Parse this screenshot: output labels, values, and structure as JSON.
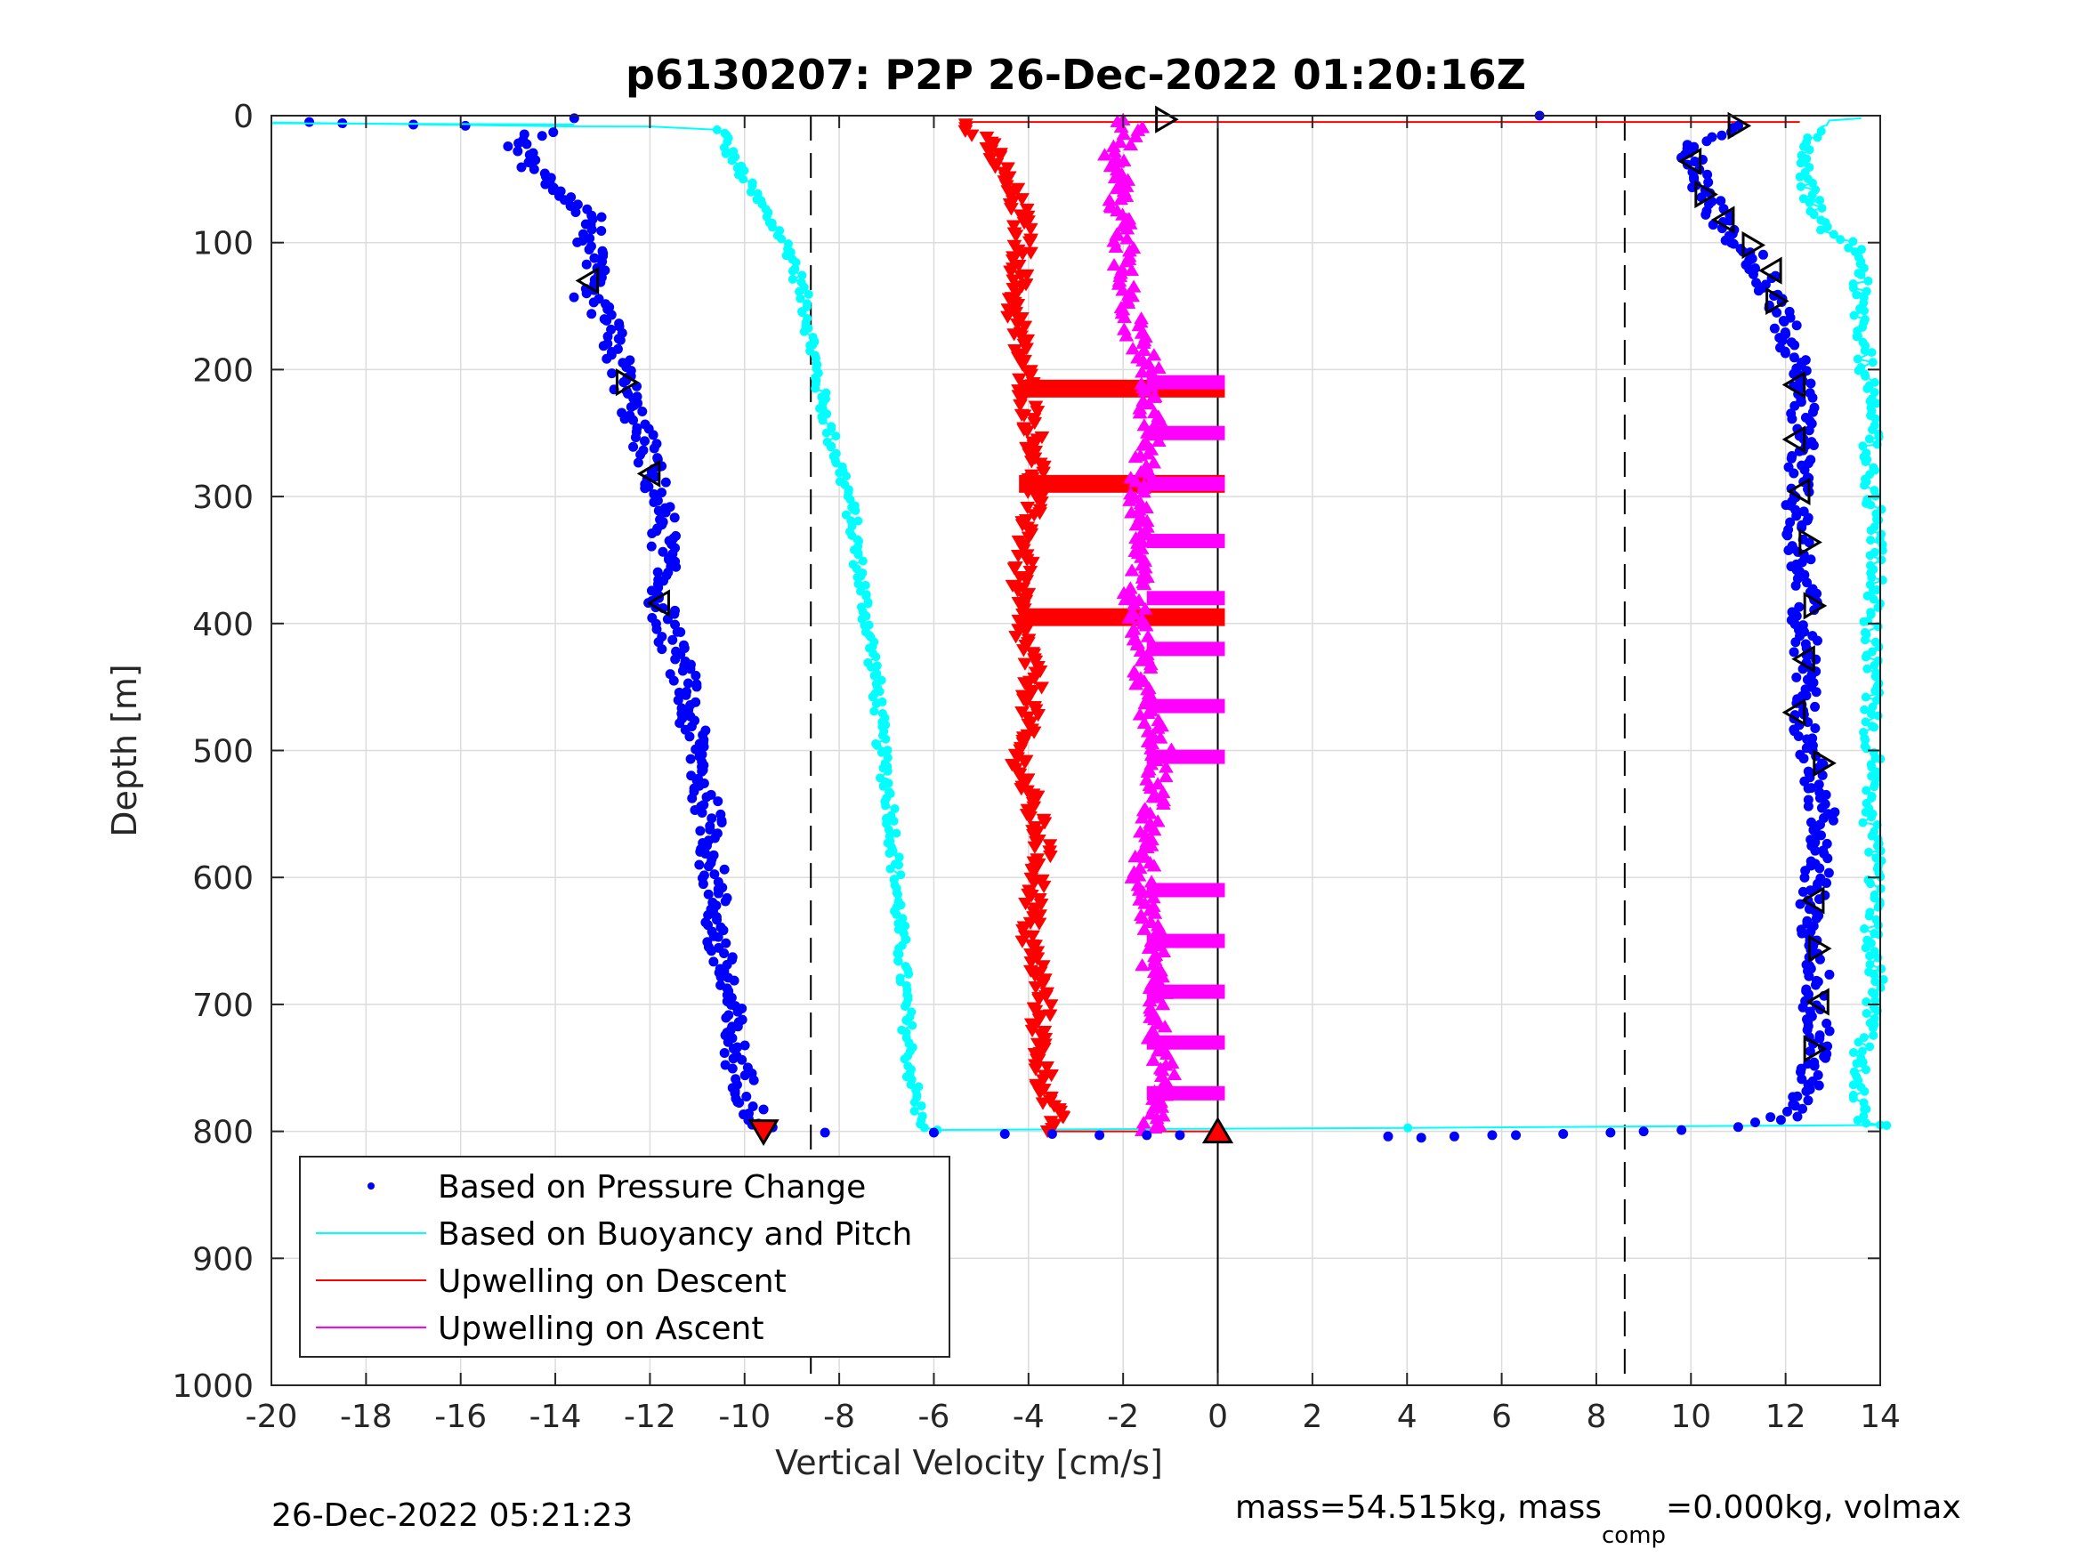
{
  "chart_data": {
    "type": "scatter",
    "title": "p6130207: P2P 26-Dec-2022 01:20:16Z",
    "xlabel": "Vertical Velocity [cm/s]",
    "ylabel": "Depth [m]",
    "xlim": [
      -20,
      14
    ],
    "ylim": [
      0,
      1000
    ],
    "y_reversed": true,
    "grid": true,
    "x_ticks": [
      "-20",
      "-18",
      "-16",
      "-14",
      "-12",
      "-10",
      "-8",
      "-6",
      "-4",
      "-2",
      "0",
      "2",
      "4",
      "6",
      "8",
      "10",
      "12",
      "14"
    ],
    "y_ticks": [
      "0",
      "100",
      "200",
      "300",
      "400",
      "500",
      "600",
      "700",
      "800",
      "900",
      "1000"
    ],
    "reference_lines": [
      {
        "type": "vertical-dashed",
        "x": -8.6
      },
      {
        "type": "vertical-dashed",
        "x": 8.6
      },
      {
        "type": "vertical-solid",
        "x": 0
      }
    ],
    "legend_position": "bottom-left",
    "series": [
      {
        "name": "Based on Pressure Change",
        "color": "#0000ff",
        "marker": "dot",
        "descent": [
          [
            -19.2,
            5
          ],
          [
            -18.5,
            6
          ],
          [
            -17.0,
            7
          ],
          [
            -15.9,
            8
          ],
          [
            -13.6,
            2
          ],
          [
            -14.3,
            12
          ],
          [
            -14.8,
            25
          ],
          [
            -14.4,
            45
          ],
          [
            -13.8,
            60
          ],
          [
            -13.2,
            80
          ],
          [
            -13.3,
            100
          ],
          [
            -13.2,
            120
          ],
          [
            -13.4,
            140
          ],
          [
            -12.9,
            160
          ],
          [
            -12.8,
            180
          ],
          [
            -12.6,
            200
          ],
          [
            -12.4,
            230
          ],
          [
            -12.1,
            260
          ],
          [
            -11.9,
            290
          ],
          [
            -11.7,
            320
          ],
          [
            -11.7,
            350
          ],
          [
            -11.8,
            380
          ],
          [
            -11.6,
            410
          ],
          [
            -11.3,
            440
          ],
          [
            -11.2,
            470
          ],
          [
            -11.0,
            500
          ],
          [
            -10.9,
            530
          ],
          [
            -10.7,
            560
          ],
          [
            -10.7,
            590
          ],
          [
            -10.6,
            620
          ],
          [
            -10.6,
            650
          ],
          [
            -10.4,
            680
          ],
          [
            -10.3,
            710
          ],
          [
            -10.2,
            740
          ],
          [
            -10.0,
            765
          ],
          [
            -9.8,
            785
          ],
          [
            -9.6,
            800
          ],
          [
            -8.3,
            801
          ],
          [
            -6.0,
            801
          ],
          [
            -4.5,
            802
          ],
          [
            -3.5,
            802
          ],
          [
            -2.5,
            803
          ],
          [
            -1.5,
            803
          ],
          [
            -0.8,
            803
          ]
        ],
        "ascent": [
          [
            3.6,
            804
          ],
          [
            4.3,
            805
          ],
          [
            5.0,
            804
          ],
          [
            5.8,
            803
          ],
          [
            6.3,
            803
          ],
          [
            7.3,
            802
          ],
          [
            8.3,
            801
          ],
          [
            9.0,
            800
          ],
          [
            9.8,
            799
          ],
          [
            10.8,
            797
          ],
          [
            11.6,
            794
          ],
          [
            12.2,
            785
          ],
          [
            12.5,
            760
          ],
          [
            12.7,
            730
          ],
          [
            12.6,
            700
          ],
          [
            12.7,
            670
          ],
          [
            12.5,
            640
          ],
          [
            12.6,
            610
          ],
          [
            12.7,
            580
          ],
          [
            12.8,
            550
          ],
          [
            12.6,
            520
          ],
          [
            12.4,
            490
          ],
          [
            12.4,
            460
          ],
          [
            12.4,
            430
          ],
          [
            12.4,
            400
          ],
          [
            12.4,
            370
          ],
          [
            12.3,
            340
          ],
          [
            12.2,
            310
          ],
          [
            12.3,
            280
          ],
          [
            12.4,
            250
          ],
          [
            12.3,
            220
          ],
          [
            12.2,
            190
          ],
          [
            12.0,
            165
          ],
          [
            11.7,
            140
          ],
          [
            11.4,
            115
          ],
          [
            10.9,
            95
          ],
          [
            10.5,
            75
          ],
          [
            10.2,
            55
          ],
          [
            10.0,
            35
          ],
          [
            10.2,
            20
          ],
          [
            11.0,
            8
          ],
          [
            6.8,
            0
          ]
        ]
      },
      {
        "name": "Based on Buoyancy and Pitch",
        "color": "#00ffff",
        "marker": "line",
        "descent": [
          [
            -20.0,
            6
          ],
          [
            -13.6,
            7
          ],
          [
            -12.0,
            8
          ],
          [
            -10.5,
            10
          ],
          [
            -10.3,
            30
          ],
          [
            -10.0,
            50
          ],
          [
            -9.5,
            80
          ],
          [
            -9.0,
            110
          ],
          [
            -8.7,
            150
          ],
          [
            -8.5,
            200
          ],
          [
            -8.2,
            250
          ],
          [
            -7.8,
            300
          ],
          [
            -7.6,
            350
          ],
          [
            -7.4,
            400
          ],
          [
            -7.2,
            450
          ],
          [
            -7.1,
            500
          ],
          [
            -6.9,
            550
          ],
          [
            -6.8,
            600
          ],
          [
            -6.7,
            650
          ],
          [
            -6.6,
            700
          ],
          [
            -6.5,
            750
          ],
          [
            -6.3,
            790
          ],
          [
            -6.0,
            800
          ],
          [
            14.0,
            795
          ]
        ],
        "ascent": [
          [
            14.0,
            795
          ],
          [
            13.6,
            790
          ],
          [
            13.5,
            760
          ],
          [
            13.7,
            720
          ],
          [
            13.9,
            680
          ],
          [
            13.8,
            640
          ],
          [
            13.9,
            600
          ],
          [
            13.8,
            560
          ],
          [
            13.9,
            520
          ],
          [
            13.8,
            480
          ],
          [
            13.9,
            440
          ],
          [
            13.8,
            400
          ],
          [
            13.9,
            360
          ],
          [
            13.9,
            320
          ],
          [
            13.8,
            280
          ],
          [
            13.8,
            240
          ],
          [
            13.7,
            200
          ],
          [
            13.6,
            160
          ],
          [
            13.6,
            120
          ],
          [
            13.4,
            100
          ],
          [
            12.8,
            90
          ],
          [
            12.6,
            70
          ],
          [
            12.4,
            50
          ],
          [
            12.5,
            30
          ],
          [
            12.7,
            10
          ],
          [
            13.0,
            3
          ],
          [
            13.6,
            2
          ]
        ]
      },
      {
        "name": "Upwelling on Descent",
        "color": "#ff0000",
        "marker": "down-triangle",
        "values": [
          [
            -5.4,
            8
          ],
          [
            -4.8,
            25
          ],
          [
            -4.5,
            50
          ],
          [
            -4.2,
            75
          ],
          [
            -4.1,
            100
          ],
          [
            -4.2,
            125
          ],
          [
            -4.3,
            150
          ],
          [
            -4.2,
            175
          ],
          [
            -4.1,
            200
          ],
          [
            -4.0,
            225
          ],
          [
            -3.9,
            250
          ],
          [
            -3.8,
            275
          ],
          [
            -3.9,
            300
          ],
          [
            -4.0,
            325
          ],
          [
            -4.1,
            350
          ],
          [
            -4.2,
            375
          ],
          [
            -4.2,
            400
          ],
          [
            -4.0,
            425
          ],
          [
            -3.9,
            450
          ],
          [
            -4.0,
            475
          ],
          [
            -4.2,
            500
          ],
          [
            -4.1,
            525
          ],
          [
            -3.9,
            550
          ],
          [
            -3.7,
            575
          ],
          [
            -3.8,
            600
          ],
          [
            -3.9,
            625
          ],
          [
            -4.0,
            650
          ],
          [
            -3.8,
            675
          ],
          [
            -3.7,
            700
          ],
          [
            -3.8,
            725
          ],
          [
            -3.7,
            750
          ],
          [
            -3.6,
            775
          ],
          [
            -3.4,
            795
          ],
          [
            -3.6,
            800
          ]
        ],
        "bands": [
          [
            215
          ],
          [
            290
          ],
          [
            395
          ]
        ],
        "top_line_y": 5
      },
      {
        "name": "Upwelling on Ascent",
        "color": "#ff00ff",
        "marker": "up-triangle",
        "values": [
          [
            -1.5,
            800
          ],
          [
            -1.2,
            775
          ],
          [
            -1.1,
            750
          ],
          [
            -1.3,
            725
          ],
          [
            -1.2,
            700
          ],
          [
            -1.4,
            675
          ],
          [
            -1.3,
            650
          ],
          [
            -1.5,
            625
          ],
          [
            -1.6,
            600
          ],
          [
            -1.5,
            575
          ],
          [
            -1.4,
            550
          ],
          [
            -1.3,
            525
          ],
          [
            -1.2,
            500
          ],
          [
            -1.4,
            475
          ],
          [
            -1.6,
            450
          ],
          [
            -1.5,
            425
          ],
          [
            -1.7,
            400
          ],
          [
            -1.8,
            375
          ],
          [
            -1.6,
            350
          ],
          [
            -1.5,
            325
          ],
          [
            -1.7,
            300
          ],
          [
            -1.6,
            275
          ],
          [
            -1.3,
            250
          ],
          [
            -1.5,
            225
          ],
          [
            -1.4,
            200
          ],
          [
            -1.7,
            175
          ],
          [
            -1.9,
            150
          ],
          [
            -2.0,
            125
          ],
          [
            -2.0,
            100
          ],
          [
            -2.1,
            75
          ],
          [
            -2.1,
            50
          ],
          [
            -2.2,
            30
          ],
          [
            -1.8,
            10
          ],
          [
            -2.0,
            3
          ]
        ],
        "bands": [
          [
            210
          ],
          [
            250
          ],
          [
            290
          ],
          [
            335
          ],
          [
            380
          ],
          [
            420
          ],
          [
            465
          ],
          [
            505
          ],
          [
            610
          ],
          [
            650
          ],
          [
            690
          ],
          [
            730
          ],
          [
            770
          ]
        ]
      }
    ],
    "markers": {
      "pitch_triangles": [
        [
          -1.1,
          3,
          "right"
        ],
        [
          -13.3,
          130,
          "left"
        ],
        [
          -12.5,
          210,
          "right"
        ],
        [
          -12.0,
          282,
          "left"
        ],
        [
          -11.8,
          384,
          "left"
        ],
        [
          11.0,
          8,
          "right"
        ],
        [
          10.0,
          36,
          "left"
        ],
        [
          10.3,
          62,
          "right"
        ],
        [
          10.7,
          82,
          "left"
        ],
        [
          11.3,
          102,
          "right"
        ],
        [
          11.7,
          122,
          "left"
        ],
        [
          11.8,
          146,
          "right"
        ],
        [
          12.2,
          212,
          "left"
        ],
        [
          12.2,
          255,
          "left"
        ],
        [
          12.3,
          296,
          "left"
        ],
        [
          12.5,
          336,
          "right"
        ],
        [
          12.6,
          386,
          "right"
        ],
        [
          12.4,
          428,
          "left"
        ],
        [
          12.2,
          470,
          "left"
        ],
        [
          12.8,
          510,
          "right"
        ],
        [
          12.6,
          618,
          "left"
        ],
        [
          12.7,
          656,
          "right"
        ],
        [
          12.7,
          698,
          "left"
        ],
        [
          12.6,
          735,
          "right"
        ]
      ],
      "end_markers": [
        {
          "x": -9.6,
          "y": 800,
          "shape": "down-triangle"
        },
        {
          "x": 0,
          "y": 800,
          "shape": "up-triangle"
        }
      ]
    }
  },
  "footer": {
    "left": "26-Dec-2022 05:21:23",
    "right_pre": "mass=54.515kg, mass",
    "right_sub": "comp",
    "right_post": "=0.000kg, volmax"
  }
}
